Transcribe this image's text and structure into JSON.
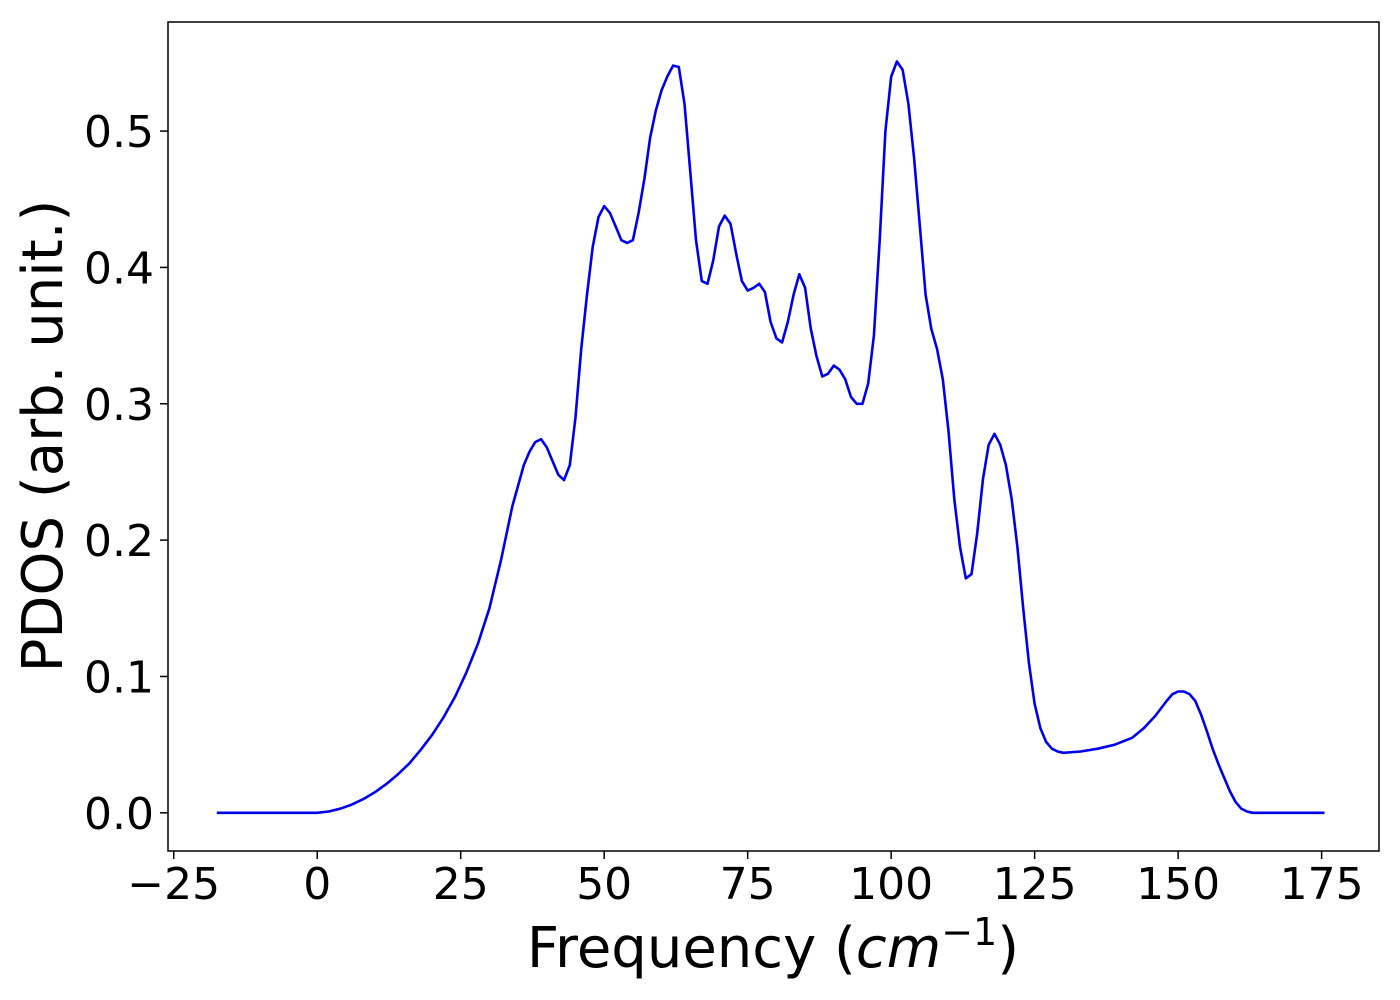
{
  "chart_data": {
    "type": "line",
    "title": "",
    "xlabel": "Frequency",
    "xlabel_unit": "cm",
    "xlabel_unit_exponent": "−1",
    "ylabel": "PDOS (arb. unit.)",
    "xlim": [
      -26,
      185
    ],
    "ylim": [
      -0.028,
      0.58
    ],
    "x_ticks": [
      -25,
      0,
      25,
      50,
      75,
      100,
      125,
      150,
      175
    ],
    "x_tick_labels": [
      "−25",
      "0",
      "25",
      "50",
      "75",
      "100",
      "125",
      "150",
      "175"
    ],
    "y_ticks": [
      0.0,
      0.1,
      0.2,
      0.3,
      0.4,
      0.5
    ],
    "y_tick_labels": [
      "0.0",
      "0.1",
      "0.2",
      "0.3",
      "0.4",
      "0.5"
    ],
    "grid": false,
    "legend": "none",
    "series": [
      {
        "color": "#0000ee",
        "x": [
          -17.5,
          -10,
          -5,
          0,
          2,
          4,
          6,
          8,
          10,
          12,
          14,
          16,
          18,
          20,
          22,
          24,
          26,
          28,
          30,
          32,
          34,
          35,
          36,
          37,
          38,
          39,
          40,
          41,
          42,
          43,
          44,
          45,
          46,
          47,
          48,
          49,
          50,
          51,
          52,
          53,
          54,
          55,
          56,
          57,
          58,
          59,
          60,
          61,
          62,
          63,
          64,
          65,
          66,
          67,
          68,
          69,
          70,
          71,
          72,
          73,
          74,
          75,
          76,
          77,
          78,
          79,
          80,
          81,
          82,
          83,
          84,
          85,
          86,
          87,
          88,
          89,
          90,
          91,
          92,
          93,
          94,
          95,
          96,
          97,
          98,
          99,
          100,
          101,
          102,
          103,
          104,
          105,
          106,
          107,
          108,
          109,
          110,
          111,
          112,
          113,
          114,
          115,
          116,
          117,
          118,
          119,
          120,
          121,
          122,
          123,
          124,
          125,
          126,
          127,
          128,
          129,
          130,
          133,
          136,
          139,
          142,
          144,
          146,
          148,
          149,
          150,
          151,
          152,
          153,
          154,
          155,
          156,
          157,
          158,
          159,
          160,
          161,
          162,
          163,
          165,
          170,
          175.5
        ],
        "values": [
          0.0,
          0.0,
          0.0,
          0.0,
          0.001,
          0.003,
          0.006,
          0.01,
          0.015,
          0.021,
          0.028,
          0.036,
          0.046,
          0.057,
          0.07,
          0.085,
          0.103,
          0.124,
          0.15,
          0.185,
          0.225,
          0.24,
          0.255,
          0.265,
          0.272,
          0.274,
          0.268,
          0.258,
          0.248,
          0.244,
          0.255,
          0.29,
          0.34,
          0.38,
          0.415,
          0.437,
          0.445,
          0.44,
          0.43,
          0.42,
          0.418,
          0.42,
          0.44,
          0.465,
          0.495,
          0.515,
          0.53,
          0.54,
          0.548,
          0.547,
          0.52,
          0.47,
          0.42,
          0.39,
          0.388,
          0.405,
          0.43,
          0.438,
          0.432,
          0.41,
          0.39,
          0.383,
          0.385,
          0.388,
          0.382,
          0.36,
          0.348,
          0.345,
          0.36,
          0.38,
          0.395,
          0.385,
          0.355,
          0.335,
          0.32,
          0.322,
          0.328,
          0.325,
          0.318,
          0.305,
          0.3,
          0.3,
          0.315,
          0.35,
          0.42,
          0.5,
          0.54,
          0.551,
          0.545,
          0.52,
          0.48,
          0.43,
          0.38,
          0.355,
          0.34,
          0.318,
          0.28,
          0.23,
          0.195,
          0.172,
          0.175,
          0.205,
          0.245,
          0.27,
          0.278,
          0.27,
          0.255,
          0.23,
          0.195,
          0.15,
          0.11,
          0.08,
          0.062,
          0.052,
          0.047,
          0.045,
          0.044,
          0.045,
          0.047,
          0.05,
          0.055,
          0.062,
          0.071,
          0.082,
          0.087,
          0.089,
          0.089,
          0.087,
          0.082,
          0.072,
          0.06,
          0.047,
          0.036,
          0.026,
          0.016,
          0.008,
          0.003,
          0.001,
          0.0,
          0.0,
          0.0,
          0.0
        ]
      }
    ]
  }
}
